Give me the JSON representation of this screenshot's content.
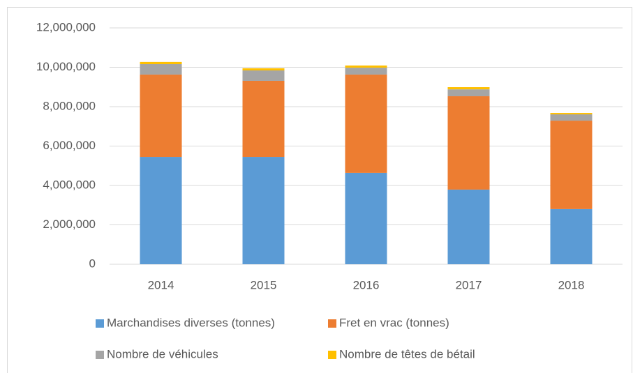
{
  "chart_data": {
    "type": "stacked_bar",
    "categories": [
      "2014",
      "2015",
      "2016",
      "2017",
      "2018"
    ],
    "series": [
      {
        "name": "Marchandises diverses (tonnes)",
        "color": "#5b9bd5",
        "values": [
          5450000,
          5450000,
          4640000,
          3790000,
          2800000
        ]
      },
      {
        "name": "Fret en vrac (tonnes)",
        "color": "#ed7d31",
        "values": [
          4180000,
          3860000,
          4990000,
          4740000,
          4490000
        ]
      },
      {
        "name": "Nombre de véhicules",
        "color": "#a5a5a5",
        "values": [
          530000,
          530000,
          350000,
          350000,
          320000
        ]
      },
      {
        "name": "Nombre de têtes de bétail",
        "color": "#ffc000",
        "values": [
          110000,
          110000,
          110000,
          110000,
          70000
        ]
      }
    ],
    "ylim": [
      0,
      12000000
    ],
    "yticks": [
      0,
      {
        "value": 2000000,
        "label": "2,000,000"
      },
      {
        "value": 4000000,
        "label": "4,000,000"
      },
      {
        "value": 6000000,
        "label": "6,000,000"
      },
      {
        "value": 8000000,
        "label": "8,000,000"
      },
      {
        "value": 10000000,
        "label": "10,000,000"
      },
      {
        "value": 12000000,
        "label": "12,000,000"
      }
    ],
    "grid": true,
    "legend": "bottom"
  }
}
